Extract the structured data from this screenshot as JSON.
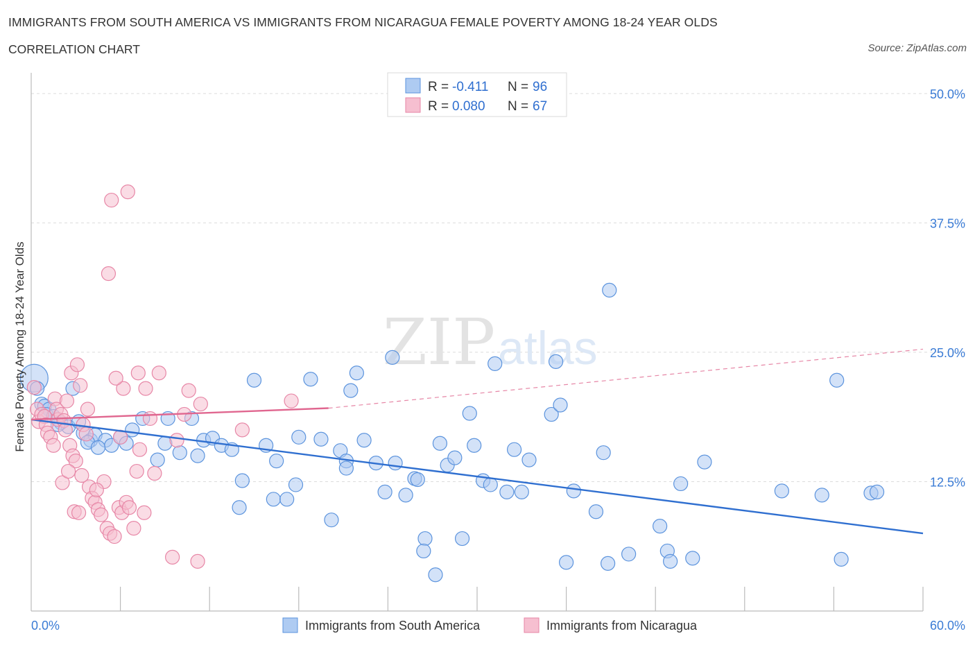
{
  "header": {
    "title": "IMMIGRANTS FROM SOUTH AMERICA VS IMMIGRANTS FROM NICARAGUA FEMALE POVERTY AMONG 18-24 YEAR OLDS",
    "subtitle": "CORRELATION CHART",
    "source": "Source: ZipAtlas.com"
  },
  "watermark": {
    "zip": "ZIP",
    "atlas": "atlas"
  },
  "colors": {
    "blue_fill": "#aecbf2",
    "blue_stroke": "#5b93dd",
    "blue_line": "#2f6fd0",
    "pink_fill": "#f6bfd0",
    "pink_stroke": "#e786a6",
    "pink_line": "#e0668f",
    "grid": "#dcdcdc",
    "tick_text": "#3a7bd5"
  },
  "legend": {
    "rows": [
      {
        "r_label": "R =",
        "r_value": "-0.411",
        "n_label": "N =",
        "n_value": "96"
      },
      {
        "r_label": "R =",
        "r_value": "0.080",
        "n_label": "N =",
        "n_value": "67"
      }
    ]
  },
  "chart_data": {
    "type": "scatter",
    "title": "IMMIGRANTS FROM SOUTH AMERICA VS IMMIGRANTS FROM NICARAGUA FEMALE POVERTY AMONG 18-24 YEAR OLDS",
    "xlabel": "",
    "ylabel": "Female Poverty Among 18-24 Year Olds",
    "xlim": [
      0,
      60
    ],
    "ylim": [
      0,
      52
    ],
    "x_tick_labels": [
      "0.0%",
      "60.0%"
    ],
    "y_ticks": [
      12.5,
      25.0,
      37.5,
      50.0
    ],
    "y_tick_labels": [
      "12.5%",
      "25.0%",
      "37.5%",
      "50.0%"
    ],
    "grid": true,
    "legend_position": "bottom-center",
    "series": [
      {
        "name": "Immigrants from South America",
        "color": "#aecbf2",
        "trend": {
          "x0": 0,
          "y0": 18.5,
          "x1": 60,
          "y1": 7.5
        },
        "points": [
          [
            0.2,
            22.5
          ],
          [
            0.4,
            21.5
          ],
          [
            0.7,
            20.0
          ],
          [
            0.9,
            19.8
          ],
          [
            1.2,
            19.5
          ],
          [
            1.0,
            19.0
          ],
          [
            1.5,
            18.8
          ],
          [
            2.0,
            18.2
          ],
          [
            2.5,
            17.8
          ],
          [
            1.8,
            18.0
          ],
          [
            3.2,
            18.3
          ],
          [
            2.8,
            21.5
          ],
          [
            3.5,
            17.2
          ],
          [
            4.0,
            16.5
          ],
          [
            4.3,
            17.0
          ],
          [
            3.8,
            16.3
          ],
          [
            5.0,
            16.5
          ],
          [
            5.4,
            16.0
          ],
          [
            6.0,
            16.8
          ],
          [
            6.4,
            16.2
          ],
          [
            6.8,
            17.5
          ],
          [
            7.5,
            18.6
          ],
          [
            8.5,
            14.6
          ],
          [
            9.2,
            18.6
          ],
          [
            9.0,
            16.2
          ],
          [
            10.0,
            15.3
          ],
          [
            10.8,
            18.6
          ],
          [
            11.2,
            15.0
          ],
          [
            11.6,
            16.5
          ],
          [
            12.2,
            16.7
          ],
          [
            12.8,
            16.0
          ],
          [
            13.5,
            15.6
          ],
          [
            14.2,
            12.6
          ],
          [
            14.0,
            10.0
          ],
          [
            15.0,
            22.3
          ],
          [
            15.8,
            16.0
          ],
          [
            16.5,
            14.5
          ],
          [
            16.3,
            10.8
          ],
          [
            17.2,
            10.8
          ],
          [
            17.8,
            12.2
          ],
          [
            18.0,
            16.8
          ],
          [
            18.8,
            22.4
          ],
          [
            19.5,
            16.6
          ],
          [
            20.2,
            8.8
          ],
          [
            20.8,
            15.5
          ],
          [
            21.2,
            14.5
          ],
          [
            21.5,
            21.3
          ],
          [
            21.9,
            23.0
          ],
          [
            21.2,
            13.8
          ],
          [
            22.4,
            16.5
          ],
          [
            23.2,
            14.3
          ],
          [
            23.8,
            11.5
          ],
          [
            24.5,
            14.3
          ],
          [
            24.3,
            24.5
          ],
          [
            25.2,
            11.2
          ],
          [
            25.8,
            12.8
          ],
          [
            26.0,
            12.7
          ],
          [
            26.5,
            7.0
          ],
          [
            26.4,
            5.8
          ],
          [
            27.2,
            3.5
          ],
          [
            27.5,
            16.2
          ],
          [
            28.0,
            14.1
          ],
          [
            28.5,
            14.8
          ],
          [
            29.0,
            7.0
          ],
          [
            29.5,
            19.1
          ],
          [
            29.8,
            16.0
          ],
          [
            30.4,
            12.6
          ],
          [
            30.9,
            12.2
          ],
          [
            31.2,
            23.9
          ],
          [
            32.0,
            11.5
          ],
          [
            32.5,
            15.6
          ],
          [
            33.5,
            14.6
          ],
          [
            33.0,
            11.5
          ],
          [
            35.0,
            19.0
          ],
          [
            35.3,
            24.1
          ],
          [
            35.6,
            19.9
          ],
          [
            36.0,
            4.7
          ],
          [
            36.5,
            11.6
          ],
          [
            38.0,
            9.6
          ],
          [
            38.5,
            15.3
          ],
          [
            38.8,
            4.6
          ],
          [
            38.9,
            31.0
          ],
          [
            40.2,
            5.5
          ],
          [
            42.3,
            8.2
          ],
          [
            42.8,
            5.8
          ],
          [
            43.0,
            4.8
          ],
          [
            43.7,
            12.3
          ],
          [
            44.5,
            5.1
          ],
          [
            45.3,
            14.4
          ],
          [
            50.5,
            11.6
          ],
          [
            53.2,
            11.2
          ],
          [
            54.2,
            22.3
          ],
          [
            54.5,
            5.0
          ],
          [
            56.5,
            11.4
          ],
          [
            56.9,
            11.5
          ],
          [
            4.5,
            15.8
          ]
        ]
      },
      {
        "name": "Immigrants from Nicaragua",
        "color": "#f6bfd0",
        "trend": {
          "x0": 0,
          "y0": 18.5,
          "x1": 20,
          "y1": 19.6,
          "x_dash_end": 60,
          "y_dash_end": 25.3
        },
        "points": [
          [
            0.2,
            21.6
          ],
          [
            0.4,
            19.5
          ],
          [
            0.5,
            18.3
          ],
          [
            0.7,
            19.0
          ],
          [
            0.9,
            18.8
          ],
          [
            1.0,
            18.0
          ],
          [
            1.1,
            17.2
          ],
          [
            1.3,
            16.8
          ],
          [
            1.5,
            16.0
          ],
          [
            1.6,
            20.5
          ],
          [
            1.7,
            19.5
          ],
          [
            1.8,
            18.5
          ],
          [
            2.0,
            19.0
          ],
          [
            2.2,
            18.4
          ],
          [
            2.3,
            17.5
          ],
          [
            2.6,
            16.0
          ],
          [
            2.8,
            15.0
          ],
          [
            3.0,
            14.5
          ],
          [
            2.1,
            12.4
          ],
          [
            2.5,
            13.5
          ],
          [
            2.4,
            20.3
          ],
          [
            2.7,
            23.0
          ],
          [
            3.1,
            23.8
          ],
          [
            3.3,
            21.8
          ],
          [
            3.5,
            18.0
          ],
          [
            3.7,
            17.1
          ],
          [
            3.9,
            12.0
          ],
          [
            4.1,
            10.9
          ],
          [
            4.3,
            10.5
          ],
          [
            4.5,
            9.8
          ],
          [
            4.7,
            9.3
          ],
          [
            4.9,
            12.5
          ],
          [
            4.4,
            11.7
          ],
          [
            3.8,
            19.5
          ],
          [
            3.4,
            13.1
          ],
          [
            2.9,
            9.6
          ],
          [
            3.2,
            9.5
          ],
          [
            5.1,
            8.0
          ],
          [
            5.3,
            7.5
          ],
          [
            5.6,
            7.2
          ],
          [
            5.9,
            10.0
          ],
          [
            6.1,
            9.5
          ],
          [
            6.4,
            10.5
          ],
          [
            6.6,
            10.0
          ],
          [
            6.9,
            8.0
          ],
          [
            7.1,
            13.5
          ],
          [
            7.3,
            15.6
          ],
          [
            7.6,
            9.5
          ],
          [
            6.5,
            40.5
          ],
          [
            6.2,
            21.5
          ],
          [
            5.7,
            22.5
          ],
          [
            5.2,
            32.6
          ],
          [
            5.4,
            39.7
          ],
          [
            6.0,
            16.8
          ],
          [
            7.2,
            23.0
          ],
          [
            7.7,
            21.5
          ],
          [
            8.0,
            18.6
          ],
          [
            8.3,
            13.3
          ],
          [
            8.6,
            23.0
          ],
          [
            9.5,
            5.2
          ],
          [
            9.8,
            16.5
          ],
          [
            10.3,
            19.0
          ],
          [
            10.6,
            21.3
          ],
          [
            11.2,
            4.8
          ],
          [
            11.4,
            20.0
          ],
          [
            14.2,
            17.5
          ],
          [
            17.5,
            20.3
          ]
        ]
      }
    ],
    "annotations": []
  }
}
